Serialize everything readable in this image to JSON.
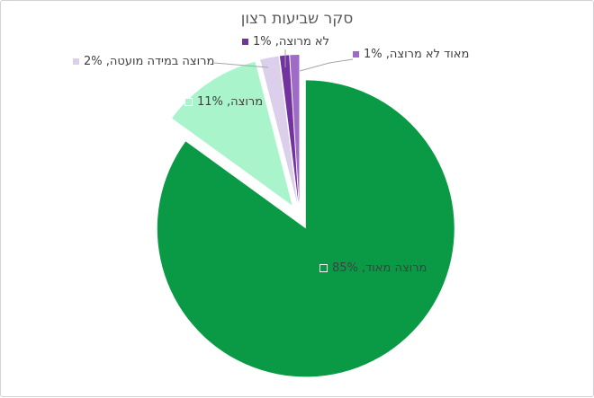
{
  "page": {
    "background": "#ffffff",
    "frame_border_color": "#d5d2d5"
  },
  "chart_data": {
    "type": "pie",
    "title": "סקר שביעות רצון",
    "title_color": "#595959",
    "direction": "rtl",
    "start_angle_deg": 0,
    "clockwise": true,
    "exploded": true,
    "legend_position": "none",
    "label_format": "category, percent with leader lines for small slices",
    "leader_line_color": "#a6a6a6",
    "label_text_color": "#404040",
    "slices": [
      {
        "label": "מרוצה מאוד",
        "value": 85,
        "display": "מרוצה מאוד, 85%",
        "color": "#0a9a45"
      },
      {
        "label": "מרוצה",
        "value": 11,
        "display": "מרוצה, 11%",
        "color": "#aaf4cc"
      },
      {
        "label": "מרוצה במידה מועטה",
        "value": 2,
        "display": "מרוצה במידה מועטה, 2%",
        "color": "#dccfeb"
      },
      {
        "label": "לא מרוצה",
        "value": 1,
        "display": "לא מרוצה, 1%",
        "color": "#7232a0"
      },
      {
        "label": "מאוד לא מרוצה",
        "value": 1,
        "display": "מאוד לא מרוצה, 1%",
        "color": "#9e6bc7"
      }
    ]
  }
}
